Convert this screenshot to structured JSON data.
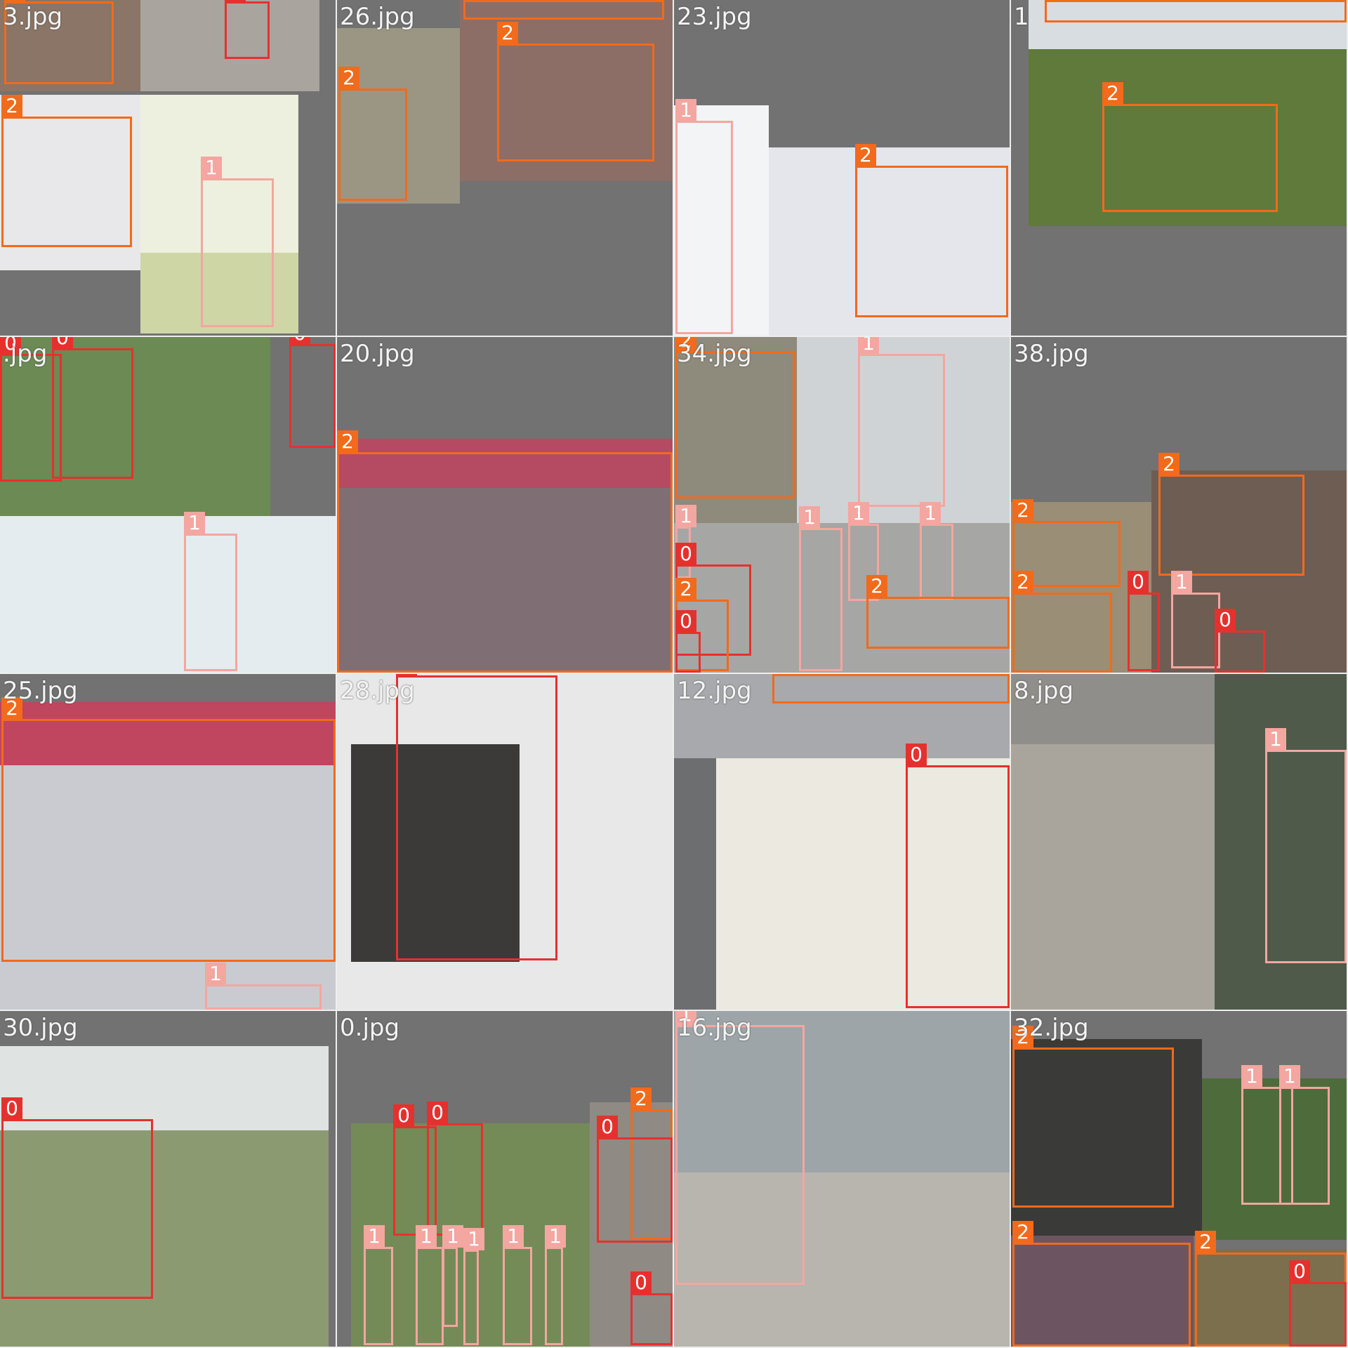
{
  "colors": {
    "class_0": "#e5312e",
    "class_1": "#f4a6a0",
    "class_2": "#f26a1b",
    "background": "#727272"
  },
  "tiles": [
    {
      "label": "3.jpg",
      "boxes": [
        {
          "cls": "2"
        },
        {
          "cls": "0"
        },
        {
          "cls": "2"
        },
        {
          "cls": "1"
        }
      ]
    },
    {
      "label": "26.jpg",
      "boxes": [
        {
          "cls": "2"
        },
        {
          "cls": "2"
        },
        {
          "cls": "2"
        }
      ]
    },
    {
      "label": "23.jpg",
      "boxes": [
        {
          "cls": "1"
        },
        {
          "cls": "2"
        }
      ]
    },
    {
      "label": "1",
      "boxes": [
        {
          "cls": "2"
        },
        {
          "cls": "2"
        }
      ]
    },
    {
      "label": ".jpg",
      "boxes": [
        {
          "cls": "0"
        },
        {
          "cls": "0"
        },
        {
          "cls": "0"
        },
        {
          "cls": "1"
        }
      ]
    },
    {
      "label": "20.jpg",
      "boxes": [
        {
          "cls": "2"
        }
      ]
    },
    {
      "label": "34.jpg",
      "boxes": [
        {
          "cls": "2"
        },
        {
          "cls": "1"
        },
        {
          "cls": "1"
        },
        {
          "cls": "0"
        },
        {
          "cls": "2"
        },
        {
          "cls": "0"
        },
        {
          "cls": "1"
        },
        {
          "cls": "1"
        },
        {
          "cls": "1"
        },
        {
          "cls": "2"
        }
      ]
    },
    {
      "label": "38.jpg",
      "boxes": [
        {
          "cls": "2"
        },
        {
          "cls": "2"
        },
        {
          "cls": "2"
        },
        {
          "cls": "0"
        },
        {
          "cls": "1"
        },
        {
          "cls": "0"
        }
      ]
    },
    {
      "label": "25.jpg",
      "boxes": [
        {
          "cls": "2"
        },
        {
          "cls": "1"
        }
      ]
    },
    {
      "label": "28.jpg",
      "boxes": [
        {
          "cls": "0"
        }
      ]
    },
    {
      "label": "12.jpg",
      "boxes": [
        {
          "cls": "2"
        },
        {
          "cls": "0"
        }
      ]
    },
    {
      "label": "8.jpg",
      "boxes": [
        {
          "cls": "1"
        }
      ]
    },
    {
      "label": "30.jpg",
      "boxes": [
        {
          "cls": "0"
        }
      ]
    },
    {
      "label": "0.jpg",
      "boxes": [
        {
          "cls": "0"
        },
        {
          "cls": "0"
        },
        {
          "cls": "2"
        },
        {
          "cls": "0"
        },
        {
          "cls": "1"
        },
        {
          "cls": "1"
        },
        {
          "cls": "1"
        },
        {
          "cls": "1"
        },
        {
          "cls": "1"
        },
        {
          "cls": "1"
        },
        {
          "cls": "0"
        }
      ]
    },
    {
      "label": "16.jpg",
      "boxes": [
        {
          "cls": "1"
        }
      ]
    },
    {
      "label": "32.jpg",
      "boxes": [
        {
          "cls": "2"
        },
        {
          "cls": "1"
        },
        {
          "cls": "1"
        },
        {
          "cls": "2"
        },
        {
          "cls": "2"
        },
        {
          "cls": "0"
        }
      ]
    }
  ]
}
